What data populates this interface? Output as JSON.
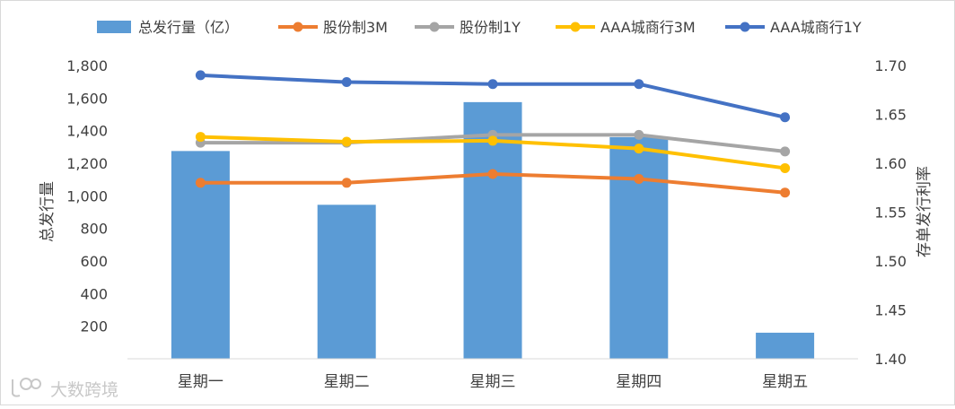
{
  "chart_data": {
    "type": "bar+line",
    "categories": [
      "星期一",
      "星期二",
      "星期三",
      "星期四",
      "星期五"
    ],
    "bar_series": {
      "name": "总发行量（亿）",
      "axis": "left",
      "values": [
        1275,
        945,
        1575,
        1360,
        160
      ]
    },
    "line_series": [
      {
        "name": "股份制3M",
        "axis": "right",
        "values": [
          1.58,
          1.58,
          1.589,
          1.584,
          1.57
        ]
      },
      {
        "name": "股份制1Y",
        "axis": "right",
        "values": [
          1.621,
          1.621,
          1.629,
          1.629,
          1.612
        ]
      },
      {
        "name": "AAA城商行3M",
        "axis": "right",
        "values": [
          1.627,
          1.622,
          1.623,
          1.615,
          1.595
        ]
      },
      {
        "name": "AAA城商行1Y",
        "axis": "right",
        "values": [
          1.69,
          1.683,
          1.681,
          1.681,
          1.647
        ]
      }
    ],
    "left_axis": {
      "label": "总发行量",
      "range": [
        0,
        1800
      ],
      "ticks": [
        0,
        200,
        400,
        600,
        800,
        1000,
        1200,
        1400,
        1600,
        1800
      ],
      "tick_labels": [
        "",
        "200",
        "400",
        "600",
        "800",
        "1,000",
        "1,200",
        "1,400",
        "1,600",
        "1,800"
      ]
    },
    "right_axis": {
      "label": "存单发行利率",
      "range": [
        1.4,
        1.7
      ],
      "ticks": [
        1.4,
        1.45,
        1.5,
        1.55,
        1.6,
        1.65,
        1.7
      ],
      "tick_labels": [
        "1.40",
        "1.45",
        "1.50",
        "1.55",
        "1.60",
        "1.65",
        "1.70"
      ]
    },
    "grid": false,
    "legend_position": "top",
    "colors": {
      "bar": "#5B9BD5",
      "股份制3M": "#ED7D31",
      "股份制1Y": "#A5A5A5",
      "AAA城商行3M": "#FFC000",
      "AAA城商行1Y": "#4472C4",
      "axis_text": "#404040",
      "frame": "#D9D9D9"
    }
  },
  "watermark": "大数跨境"
}
